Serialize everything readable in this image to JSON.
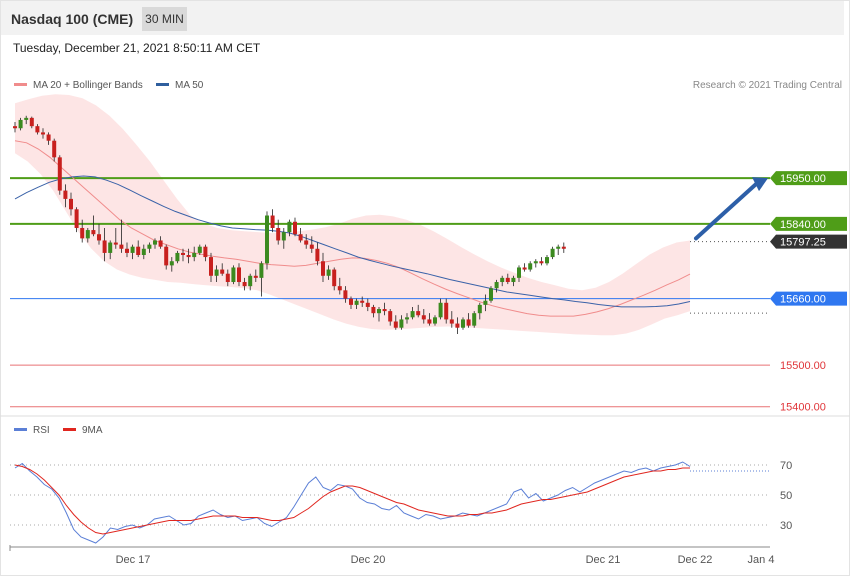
{
  "header": {
    "title": "Nasdaq 100 (CME)",
    "timeframe": "30 MIN"
  },
  "timestamp": "Tuesday, December 21, 2021 8:50:11 AM CET",
  "legend": [
    {
      "label": "MA 20 + Bollinger Bands",
      "color": "#f08c8c"
    },
    {
      "label": "MA 50",
      "color": "#2f5f9e"
    }
  ],
  "credit": "Research © 2021 Trading Central",
  "chart_data": [
    {
      "type": "candlestick",
      "ylim": [
        15380,
        16150
      ],
      "x_labels": [
        "Dec 17",
        "Dec 20",
        "Dec 21",
        "Dec 22",
        "Jan 4"
      ],
      "candles": [
        [
          16075,
          16085,
          16060,
          16070
        ],
        [
          16070,
          16095,
          16065,
          16090
        ],
        [
          16090,
          16100,
          16080,
          16095
        ],
        [
          16095,
          16098,
          16070,
          16075
        ],
        [
          16075,
          16080,
          16055,
          16060
        ],
        [
          16060,
          16070,
          16045,
          16055
        ],
        [
          16055,
          16060,
          16030,
          16040
        ],
        [
          16040,
          16045,
          15990,
          16000
        ],
        [
          16000,
          16005,
          15910,
          15920
        ],
        [
          15920,
          15935,
          15880,
          15900
        ],
        [
          15900,
          15915,
          15860,
          15875
        ],
        [
          15875,
          15880,
          15820,
          15830
        ],
        [
          15830,
          15850,
          15795,
          15805
        ],
        [
          15805,
          15830,
          15795,
          15825
        ],
        [
          15825,
          15860,
          15810,
          15815
        ],
        [
          15815,
          15840,
          15790,
          15800
        ],
        [
          15800,
          15830,
          15750,
          15770
        ],
        [
          15770,
          15800,
          15755,
          15795
        ],
        [
          15795,
          15830,
          15780,
          15790
        ],
        [
          15790,
          15850,
          15770,
          15780
        ],
        [
          15780,
          15795,
          15760,
          15770
        ],
        [
          15770,
          15790,
          15755,
          15785
        ],
        [
          15785,
          15800,
          15760,
          15765
        ],
        [
          15765,
          15790,
          15755,
          15780
        ],
        [
          15780,
          15795,
          15770,
          15790
        ],
        [
          15790,
          15805,
          15780,
          15800
        ],
        [
          15800,
          15810,
          15780,
          15785
        ],
        [
          15785,
          15790,
          15730,
          15740
        ],
        [
          15740,
          15760,
          15725,
          15750
        ],
        [
          15750,
          15775,
          15745,
          15770
        ],
        [
          15770,
          15780,
          15750,
          15765
        ],
        [
          15765,
          15780,
          15745,
          15760
        ],
        [
          15760,
          15785,
          15750,
          15770
        ],
        [
          15770,
          15790,
          15765,
          15785
        ],
        [
          15785,
          15790,
          15750,
          15760
        ],
        [
          15760,
          15770,
          15700,
          15715
        ],
        [
          15715,
          15740,
          15700,
          15730
        ],
        [
          15730,
          15745,
          15715,
          15720
        ],
        [
          15720,
          15730,
          15690,
          15700
        ],
        [
          15700,
          15740,
          15695,
          15735
        ],
        [
          15735,
          15745,
          15690,
          15700
        ],
        [
          15700,
          15710,
          15680,
          15690
        ],
        [
          15690,
          15720,
          15680,
          15715
        ],
        [
          15715,
          15730,
          15700,
          15710
        ],
        [
          15710,
          15750,
          15665,
          15745
        ],
        [
          15745,
          15870,
          15730,
          15860
        ],
        [
          15860,
          15875,
          15820,
          15830
        ],
        [
          15830,
          15850,
          15790,
          15800
        ],
        [
          15800,
          15830,
          15780,
          15820
        ],
        [
          15820,
          15850,
          15810,
          15845
        ],
        [
          15845,
          15855,
          15810,
          15815
        ],
        [
          15815,
          15830,
          15795,
          15800
        ],
        [
          15800,
          15815,
          15780,
          15790
        ],
        [
          15790,
          15810,
          15770,
          15780
        ],
        [
          15780,
          15795,
          15740,
          15750
        ],
        [
          15750,
          15770,
          15700,
          15715
        ],
        [
          15715,
          15740,
          15705,
          15730
        ],
        [
          15730,
          15735,
          15680,
          15690
        ],
        [
          15690,
          15710,
          15670,
          15680
        ],
        [
          15680,
          15690,
          15650,
          15660
        ],
        [
          15660,
          15665,
          15635,
          15645
        ],
        [
          15645,
          15660,
          15635,
          15655
        ],
        [
          15655,
          15665,
          15640,
          15650
        ],
        [
          15650,
          15660,
          15630,
          15640
        ],
        [
          15640,
          15645,
          15615,
          15625
        ],
        [
          15625,
          15640,
          15605,
          15635
        ],
        [
          15635,
          15650,
          15620,
          15630
        ],
        [
          15630,
          15635,
          15595,
          15605
        ],
        [
          15605,
          15620,
          15585,
          15590
        ],
        [
          15590,
          15620,
          15585,
          15610
        ],
        [
          15610,
          15625,
          15600,
          15615
        ],
        [
          15615,
          15640,
          15610,
          15630
        ],
        [
          15630,
          15645,
          15615,
          15620
        ],
        [
          15620,
          15635,
          15600,
          15610
        ],
        [
          15610,
          15625,
          15595,
          15600
        ],
        [
          15600,
          15620,
          15595,
          15615
        ],
        [
          15615,
          15660,
          15610,
          15650
        ],
        [
          15650,
          15660,
          15600,
          15610
        ],
        [
          15610,
          15630,
          15590,
          15600
        ],
        [
          15600,
          15615,
          15575,
          15590
        ],
        [
          15590,
          15615,
          15585,
          15610
        ],
        [
          15610,
          15625,
          15590,
          15595
        ],
        [
          15595,
          15630,
          15590,
          15625
        ],
        [
          15625,
          15650,
          15610,
          15645
        ],
        [
          15645,
          15670,
          15630,
          15655
        ],
        [
          15655,
          15690,
          15650,
          15685
        ],
        [
          15685,
          15705,
          15675,
          15700
        ],
        [
          15700,
          15715,
          15690,
          15710
        ],
        [
          15710,
          15720,
          15695,
          15700
        ],
        [
          15700,
          15715,
          15690,
          15710
        ],
        [
          15710,
          15740,
          15700,
          15735
        ],
        [
          15735,
          15745,
          15725,
          15730
        ],
        [
          15730,
          15750,
          15725,
          15745
        ],
        [
          15745,
          15755,
          15735,
          15750
        ],
        [
          15750,
          15760,
          15740,
          15745
        ],
        [
          15745,
          15765,
          15740,
          15760
        ],
        [
          15760,
          15785,
          15755,
          15780
        ],
        [
          15780,
          15790,
          15765,
          15785
        ],
        [
          15785,
          15795,
          15770,
          15780
        ]
      ],
      "ma20": [
        16040,
        16035,
        16020,
        16000,
        15975,
        15950,
        15925,
        15900,
        15875,
        15850,
        15830,
        15815,
        15800,
        15790,
        15780,
        15772,
        15767,
        15762,
        15758,
        15755,
        15750,
        15745,
        15742,
        15740,
        15738,
        15740,
        15745,
        15750,
        15755,
        15758,
        15757,
        15752,
        15745,
        15735,
        15722,
        15708,
        15695,
        15683,
        15672,
        15662,
        15652,
        15643,
        15636,
        15630,
        15624,
        15620,
        15618,
        15618,
        15618,
        15622,
        15628,
        15636,
        15646,
        15657,
        15668,
        15680,
        15693,
        15705,
        15719
      ],
      "ma50": [
        15900,
        15915,
        15928,
        15940,
        15948,
        15953,
        15955,
        15953,
        15945,
        15935,
        15922,
        15908,
        15895,
        15882,
        15870,
        15860,
        15850,
        15842,
        15835,
        15830,
        15828,
        15826,
        15825,
        15822,
        15818,
        15810,
        15800,
        15790,
        15780,
        15770,
        15760,
        15752,
        15745,
        15738,
        15732,
        15726,
        15720,
        15713,
        15706,
        15700,
        15694,
        15688,
        15682,
        15676,
        15672,
        15668,
        15664,
        15660,
        15657,
        15653,
        15650,
        15646,
        15643,
        15640,
        15640,
        15640,
        15641,
        15643,
        15647,
        15653
      ],
      "bb_upper": [
        16130,
        16140,
        16148,
        16152,
        16150,
        16142,
        16125,
        16100,
        16068,
        16030,
        15990,
        15945,
        15900,
        15860,
        15840,
        15830,
        15825,
        15822,
        15820,
        15818,
        15820,
        15822,
        15826,
        15832,
        15840,
        15852,
        15860,
        15862,
        15858,
        15850,
        15838,
        15822,
        15804,
        15785,
        15767,
        15750,
        15735,
        15722,
        15710,
        15700,
        15692,
        15684,
        15680,
        15686,
        15700,
        15720,
        15743,
        15766,
        15783,
        15795,
        15800
      ],
      "bb_lower": [
        16010,
        15990,
        15960,
        15920,
        15870,
        15820,
        15780,
        15750,
        15730,
        15718,
        15710,
        15705,
        15700,
        15698,
        15695,
        15692,
        15690,
        15688,
        15685,
        15680,
        15670,
        15658,
        15646,
        15634,
        15622,
        15610,
        15600,
        15592,
        15587,
        15585,
        15586,
        15588,
        15590,
        15592,
        15593,
        15592,
        15590,
        15588,
        15586,
        15584,
        15582,
        15580,
        15578,
        15576,
        15574,
        15573,
        15572,
        15572,
        15576,
        15585,
        15598,
        15612,
        15620,
        15630
      ],
      "levels": [
        {
          "value": "15950.00",
          "kind": "resistance",
          "color": "#4f9d18"
        },
        {
          "value": "15840.00",
          "kind": "resistance",
          "color": "#4f9d18"
        },
        {
          "value": "15797.25",
          "kind": "last",
          "color": "#333333"
        },
        {
          "value": "15660.00",
          "kind": "pivot",
          "color": "#2f77f0"
        },
        {
          "value": "15500.00",
          "kind": "support",
          "color": "#e0363a"
        },
        {
          "value": "15400.00",
          "kind": "support",
          "color": "#e0363a"
        }
      ]
    },
    {
      "type": "line",
      "ylim": [
        10,
        90
      ],
      "y_ticks": [
        "70",
        "50",
        "30"
      ],
      "legend": [
        {
          "label": "RSI",
          "color": "#5b7fd6"
        },
        {
          "label": "9MA",
          "color": "#e0261f"
        }
      ],
      "rsi": [
        68,
        71,
        66,
        62,
        57,
        54,
        48,
        38,
        27,
        22,
        20,
        18,
        22,
        28,
        27,
        29,
        30,
        28,
        30,
        34,
        35,
        36,
        33,
        30,
        31,
        36,
        38,
        40,
        37,
        35,
        36,
        33,
        34,
        35,
        31,
        29,
        32,
        35,
        42,
        50,
        58,
        62,
        55,
        53,
        57,
        56,
        54,
        48,
        45,
        44,
        41,
        40,
        43,
        38,
        36,
        34,
        37,
        36,
        34,
        35,
        36,
        38,
        37,
        36,
        38,
        40,
        42,
        44,
        52,
        54,
        48,
        51,
        46,
        48,
        50,
        53,
        55,
        52,
        55,
        58,
        60,
        62,
        64,
        66,
        65,
        67,
        68,
        66,
        68,
        69,
        70,
        72,
        69
      ],
      "ma9": [
        70,
        69,
        67,
        64,
        60,
        55,
        50,
        43,
        37,
        32,
        28,
        25,
        24,
        25,
        26,
        27,
        28,
        29,
        30,
        31,
        32,
        33,
        33,
        33,
        33,
        34,
        35,
        36,
        36,
        36,
        36,
        35,
        35,
        35,
        34,
        33,
        33,
        34,
        35,
        38,
        41,
        45,
        49,
        52,
        54,
        56,
        56,
        55,
        53,
        51,
        49,
        47,
        45,
        44,
        42,
        40,
        39,
        38,
        37,
        36,
        36,
        36,
        37,
        37,
        38,
        38,
        39,
        40,
        42,
        44,
        45,
        46,
        47,
        47,
        48,
        49,
        50,
        51,
        52,
        54,
        56,
        58,
        60,
        62,
        63,
        64,
        65,
        66,
        66,
        67,
        67,
        68,
        68
      ]
    }
  ]
}
